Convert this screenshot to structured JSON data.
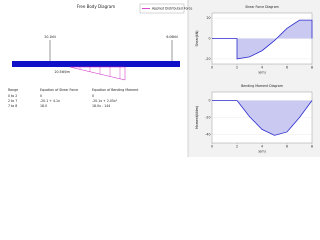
{
  "free_body_diagram": {
    "title": "Free Body Diagram",
    "legend": "Applied Distributed Force",
    "loads": [
      "20.1kN",
      "6.06kN"
    ],
    "distributed_label": "20.5kN/m",
    "table": {
      "header": [
        "Range",
        "Equation of Shear Force",
        "Equation of Bending Moment"
      ],
      "rows": [
        [
          "0 to 2",
          "0",
          "0"
        ],
        [
          "2 to 7",
          "-20.1 + 4.1x",
          "-20.1x + 2.05x²"
        ],
        [
          "7 to 8",
          "18.0",
          "18.0x - 144"
        ]
      ]
    }
  },
  "chart_data": [
    {
      "type": "line",
      "title": "Shear Force Diagram",
      "x_label": "x(m)",
      "y_label": "Shear(kN)",
      "x": [
        0,
        2,
        2,
        3,
        4,
        5,
        6,
        7,
        8,
        8
      ],
      "values": [
        0,
        0,
        -20,
        -18,
        -12,
        -2,
        10,
        18,
        18,
        0
      ],
      "color": "#2b2bcf",
      "fill": "#c9c9f2",
      "xlim": [
        0,
        8
      ],
      "xticks": [
        0,
        2,
        4,
        6,
        8
      ],
      "ylim": [
        -25,
        25
      ],
      "yticks": [
        -20,
        0,
        20
      ]
    },
    {
      "type": "line",
      "title": "Bending Moment Diagram",
      "x_label": "x(m)",
      "y_label": "Moment(kNm)",
      "x": [
        0,
        2,
        3,
        4,
        5,
        6,
        7,
        8
      ],
      "values": [
        0,
        0,
        -19,
        -34,
        -41,
        -37,
        -20,
        0
      ],
      "color": "#2b2bcf",
      "fill": "#c9c9f2",
      "xlim": [
        0,
        8
      ],
      "xticks": [
        0,
        2,
        4,
        6,
        8
      ],
      "ylim": [
        -50,
        10
      ],
      "yticks": [
        -40,
        -20,
        0
      ]
    }
  ]
}
